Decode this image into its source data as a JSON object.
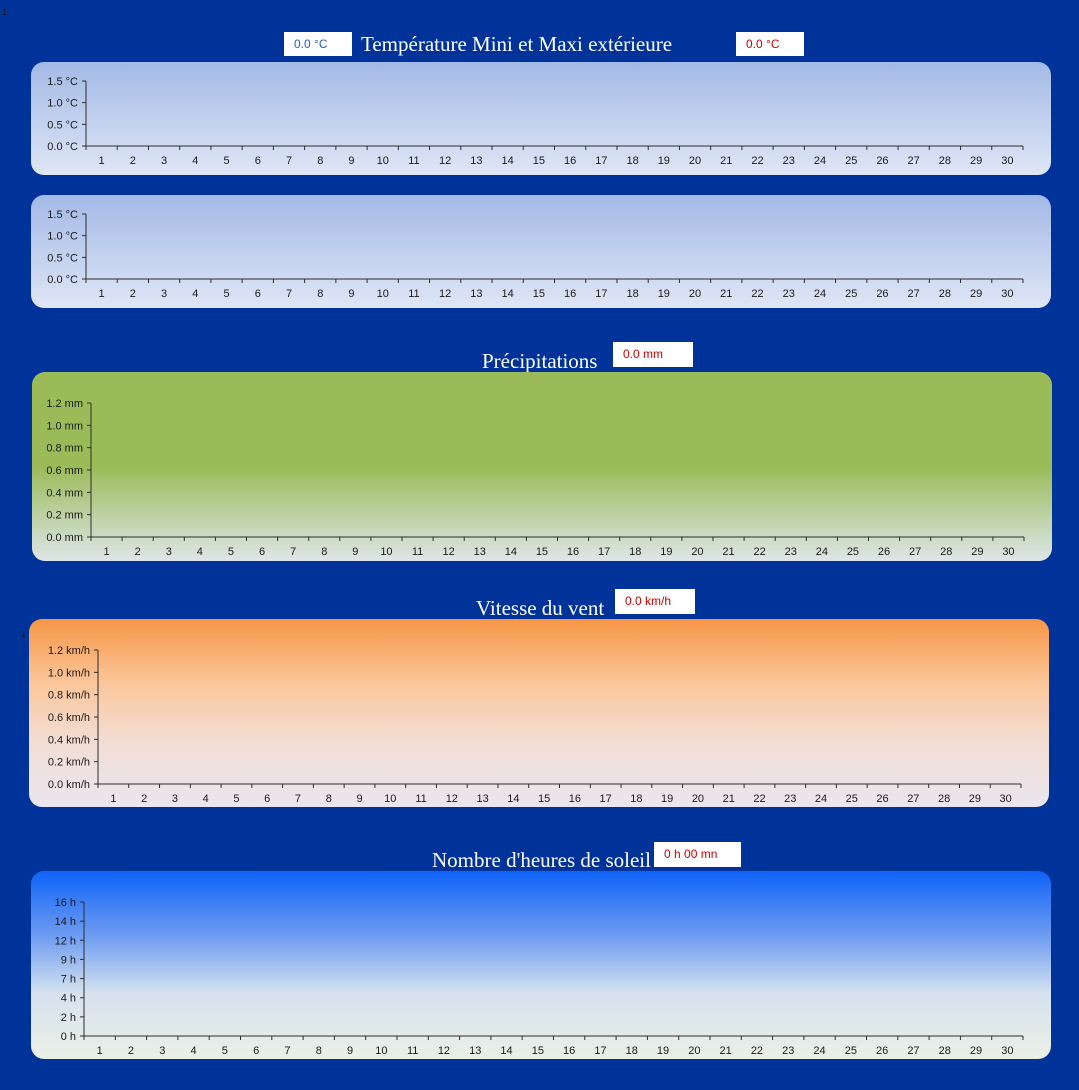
{
  "corner_marks": {
    "top_left": "1",
    "wind_left": "1"
  },
  "sections": {
    "temperature": {
      "title": "Température Mini et Maxi extérieure",
      "min_value": "0.0 °C",
      "max_value": "0.0 °C"
    },
    "precipitation": {
      "title": "Précipitations",
      "value": "0.0 mm"
    },
    "wind": {
      "title": "Vitesse du vent",
      "value": "0.0 km/h"
    },
    "sunshine": {
      "title": "Nombre d'heures de soleil",
      "value": "0 h 00 mn"
    }
  },
  "colors": {
    "page_background": "#00339a",
    "temperature_panel": [
      "#a3b9e6",
      "#dfe6f5"
    ],
    "precipitation_panel": [
      "#9bbb59",
      "#dde6e8"
    ],
    "wind_panel": [
      "#f79646",
      "#ebe6f0"
    ],
    "sunshine_panel": [
      "#0f62f8",
      "#ebf0e6"
    ],
    "min_value_text": "#1f5fbf",
    "max_value_text": "#cc0000"
  },
  "chart_data": [
    {
      "id": "temp-chart-1",
      "type": "line",
      "x": [
        1,
        2,
        3,
        4,
        5,
        6,
        7,
        8,
        9,
        10,
        11,
        12,
        13,
        14,
        15,
        16,
        17,
        18,
        19,
        20,
        21,
        22,
        23,
        24,
        25,
        26,
        27,
        28,
        29,
        30
      ],
      "x_labels": [
        "1",
        "2",
        "3",
        "4",
        "5",
        "6",
        "7",
        "8",
        "9",
        "10",
        "11",
        "12",
        "13",
        "14",
        "15",
        "16",
        "17",
        "18",
        "19",
        "20",
        "21",
        "22",
        "23",
        "24",
        "25",
        "26",
        "27",
        "28",
        "29",
        "30"
      ],
      "y_tick_labels": [
        "0.0 °C",
        "0.5 °C",
        "1.0 °C",
        "1.5 °C"
      ],
      "ylim": [
        0,
        1.5
      ],
      "series": [],
      "grid": false
    },
    {
      "id": "temp-chart-2",
      "type": "line",
      "x": [
        1,
        2,
        3,
        4,
        5,
        6,
        7,
        8,
        9,
        10,
        11,
        12,
        13,
        14,
        15,
        16,
        17,
        18,
        19,
        20,
        21,
        22,
        23,
        24,
        25,
        26,
        27,
        28,
        29,
        30
      ],
      "x_labels": [
        "1",
        "2",
        "3",
        "4",
        "5",
        "6",
        "7",
        "8",
        "9",
        "10",
        "11",
        "12",
        "13",
        "14",
        "15",
        "16",
        "17",
        "18",
        "19",
        "20",
        "21",
        "22",
        "23",
        "24",
        "25",
        "26",
        "27",
        "28",
        "29",
        "30"
      ],
      "y_tick_labels": [
        "0.0 °C",
        "0.5 °C",
        "1.0 °C",
        "1.5 °C"
      ],
      "ylim": [
        0,
        1.5
      ],
      "series": [],
      "grid": false
    },
    {
      "id": "precip-chart",
      "type": "bar",
      "x": [
        1,
        2,
        3,
        4,
        5,
        6,
        7,
        8,
        9,
        10,
        11,
        12,
        13,
        14,
        15,
        16,
        17,
        18,
        19,
        20,
        21,
        22,
        23,
        24,
        25,
        26,
        27,
        28,
        29,
        30
      ],
      "x_labels": [
        "1",
        "2",
        "3",
        "4",
        "5",
        "6",
        "7",
        "8",
        "9",
        "10",
        "11",
        "12",
        "13",
        "14",
        "15",
        "16",
        "17",
        "18",
        "19",
        "20",
        "21",
        "22",
        "23",
        "24",
        "25",
        "26",
        "27",
        "28",
        "29",
        "30"
      ],
      "y_tick_labels": [
        "0.0 mm",
        "0.2 mm",
        "0.4 mm",
        "0.6 mm",
        "0.8 mm",
        "1.0 mm",
        "1.2 mm"
      ],
      "ylim": [
        0,
        1.2
      ],
      "series": [],
      "grid": false
    },
    {
      "id": "wind-chart",
      "type": "line",
      "x": [
        1,
        2,
        3,
        4,
        5,
        6,
        7,
        8,
        9,
        10,
        11,
        12,
        13,
        14,
        15,
        16,
        17,
        18,
        19,
        20,
        21,
        22,
        23,
        24,
        25,
        26,
        27,
        28,
        29,
        30
      ],
      "x_labels": [
        "1",
        "2",
        "3",
        "4",
        "5",
        "6",
        "7",
        "8",
        "9",
        "10",
        "11",
        "12",
        "13",
        "14",
        "15",
        "16",
        "17",
        "18",
        "19",
        "20",
        "21",
        "22",
        "23",
        "24",
        "25",
        "26",
        "27",
        "28",
        "29",
        "30"
      ],
      "y_tick_labels": [
        "0.0 km/h",
        "0.2 km/h",
        "0.4 km/h",
        "0.6 km/h",
        "0.8 km/h",
        "1.0 km/h",
        "1.2 km/h"
      ],
      "ylim": [
        0,
        1.2
      ],
      "series": [],
      "grid": false
    },
    {
      "id": "sun-chart",
      "type": "bar",
      "x": [
        1,
        2,
        3,
        4,
        5,
        6,
        7,
        8,
        9,
        10,
        11,
        12,
        13,
        14,
        15,
        16,
        17,
        18,
        19,
        20,
        21,
        22,
        23,
        24,
        25,
        26,
        27,
        28,
        29,
        30
      ],
      "x_labels": [
        "1",
        "2",
        "3",
        "4",
        "5",
        "6",
        "7",
        "8",
        "9",
        "10",
        "11",
        "12",
        "13",
        "14",
        "15",
        "16",
        "17",
        "18",
        "19",
        "20",
        "21",
        "22",
        "23",
        "24",
        "25",
        "26",
        "27",
        "28",
        "29",
        "30"
      ],
      "y_tick_labels": [
        "0 h",
        "2 h",
        "4 h",
        "7 h",
        "9 h",
        "12 h",
        "14 h",
        "16 h"
      ],
      "ylim": [
        0,
        16
      ],
      "series": [],
      "grid": false
    }
  ]
}
